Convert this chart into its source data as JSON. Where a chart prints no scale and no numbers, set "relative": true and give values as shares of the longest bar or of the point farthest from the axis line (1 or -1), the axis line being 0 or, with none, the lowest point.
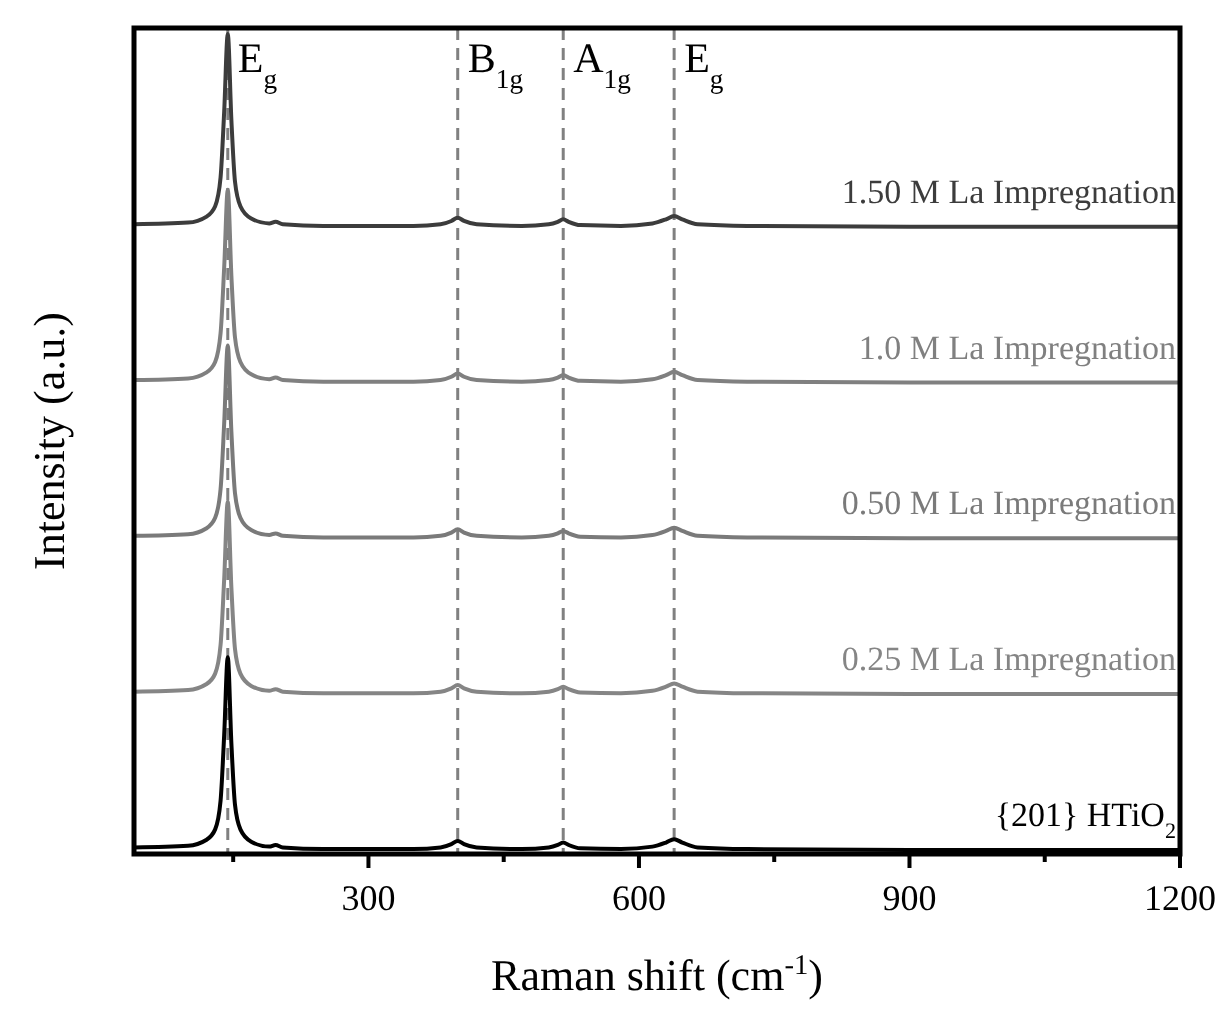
{
  "chart_data": {
    "type": "line",
    "relative": true,
    "xlabel": "Raman shift (cm$^{-1}$)",
    "ylabel": "Intensity (a.u.)",
    "x": [
      40,
      100,
      120,
      130,
      136,
      140,
      144,
      148,
      152,
      158,
      170,
      190,
      197,
      205,
      250,
      350,
      380,
      392,
      399,
      406,
      420,
      470,
      500,
      510,
      516,
      522,
      535,
      580,
      615,
      630,
      639,
      648,
      665,
      720,
      900,
      1200
    ],
    "xlim": [
      40,
      1200
    ],
    "xticks": [
      {
        "value": 150,
        "label": null
      },
      300,
      {
        "value": 450,
        "label": null
      },
      600,
      {
        "value": 750,
        "label": null
      },
      900,
      {
        "value": 1050,
        "label": null
      },
      1200
    ],
    "series": [
      {
        "name": "1.50 M La Impregnation",
        "color": "#3c3c3c",
        "values": [
          0.768,
          0.77,
          0.777,
          0.79,
          0.825,
          0.905,
          1.0,
          0.895,
          0.82,
          0.79,
          0.775,
          0.769,
          0.771,
          0.768,
          0.766,
          0.766,
          0.768,
          0.772,
          0.776,
          0.772,
          0.768,
          0.766,
          0.768,
          0.771,
          0.774,
          0.771,
          0.767,
          0.766,
          0.769,
          0.774,
          0.778,
          0.774,
          0.768,
          0.766,
          0.765,
          0.765
        ]
      },
      {
        "name": "1.0 M La Impregnation",
        "color": "#808080",
        "values": [
          0.578,
          0.58,
          0.587,
          0.6,
          0.635,
          0.715,
          0.81,
          0.705,
          0.63,
          0.6,
          0.585,
          0.579,
          0.581,
          0.578,
          0.576,
          0.576,
          0.578,
          0.582,
          0.586,
          0.582,
          0.578,
          0.576,
          0.578,
          0.581,
          0.584,
          0.581,
          0.577,
          0.576,
          0.579,
          0.584,
          0.588,
          0.584,
          0.578,
          0.576,
          0.575,
          0.575
        ]
      },
      {
        "name": "0.50 M La Impregnation",
        "color": "#7a7a7a",
        "values": [
          0.388,
          0.39,
          0.397,
          0.41,
          0.445,
          0.525,
          0.62,
          0.515,
          0.44,
          0.41,
          0.395,
          0.389,
          0.391,
          0.388,
          0.386,
          0.386,
          0.388,
          0.392,
          0.396,
          0.392,
          0.388,
          0.386,
          0.388,
          0.391,
          0.394,
          0.391,
          0.387,
          0.386,
          0.389,
          0.394,
          0.398,
          0.394,
          0.388,
          0.386,
          0.385,
          0.385
        ]
      },
      {
        "name": "0.25 M La Impregnation",
        "color": "#858585",
        "values": [
          0.198,
          0.2,
          0.207,
          0.22,
          0.255,
          0.335,
          0.43,
          0.325,
          0.25,
          0.22,
          0.205,
          0.199,
          0.201,
          0.198,
          0.196,
          0.196,
          0.198,
          0.202,
          0.206,
          0.202,
          0.198,
          0.196,
          0.198,
          0.201,
          0.204,
          0.201,
          0.197,
          0.196,
          0.199,
          0.204,
          0.208,
          0.204,
          0.198,
          0.196,
          0.195,
          0.195
        ]
      },
      {
        "name": "{201} HTiO$_{2}$",
        "color": "#000000",
        "values": [
          0.008,
          0.01,
          0.017,
          0.03,
          0.065,
          0.145,
          0.24,
          0.135,
          0.06,
          0.03,
          0.015,
          0.009,
          0.011,
          0.008,
          0.006,
          0.006,
          0.008,
          0.012,
          0.016,
          0.012,
          0.008,
          0.006,
          0.008,
          0.011,
          0.014,
          0.011,
          0.007,
          0.006,
          0.009,
          0.014,
          0.018,
          0.014,
          0.008,
          0.006,
          0.005,
          0.005
        ]
      }
    ],
    "ref_lines": [
      {
        "axis": "x",
        "value": 144,
        "label": "E$_{g}$",
        "color": "#808080",
        "line_style": "dashed"
      },
      {
        "axis": "x",
        "value": 399,
        "label": "B$_{1g}$",
        "color": "#808080",
        "line_style": "dashed"
      },
      {
        "axis": "x",
        "value": 516,
        "label": "A$_{1g}$",
        "color": "#808080",
        "line_style": "dashed"
      },
      {
        "axis": "x",
        "value": 639,
        "label": "E$_{g}$",
        "color": "#808080",
        "line_style": "dashed"
      }
    ]
  }
}
